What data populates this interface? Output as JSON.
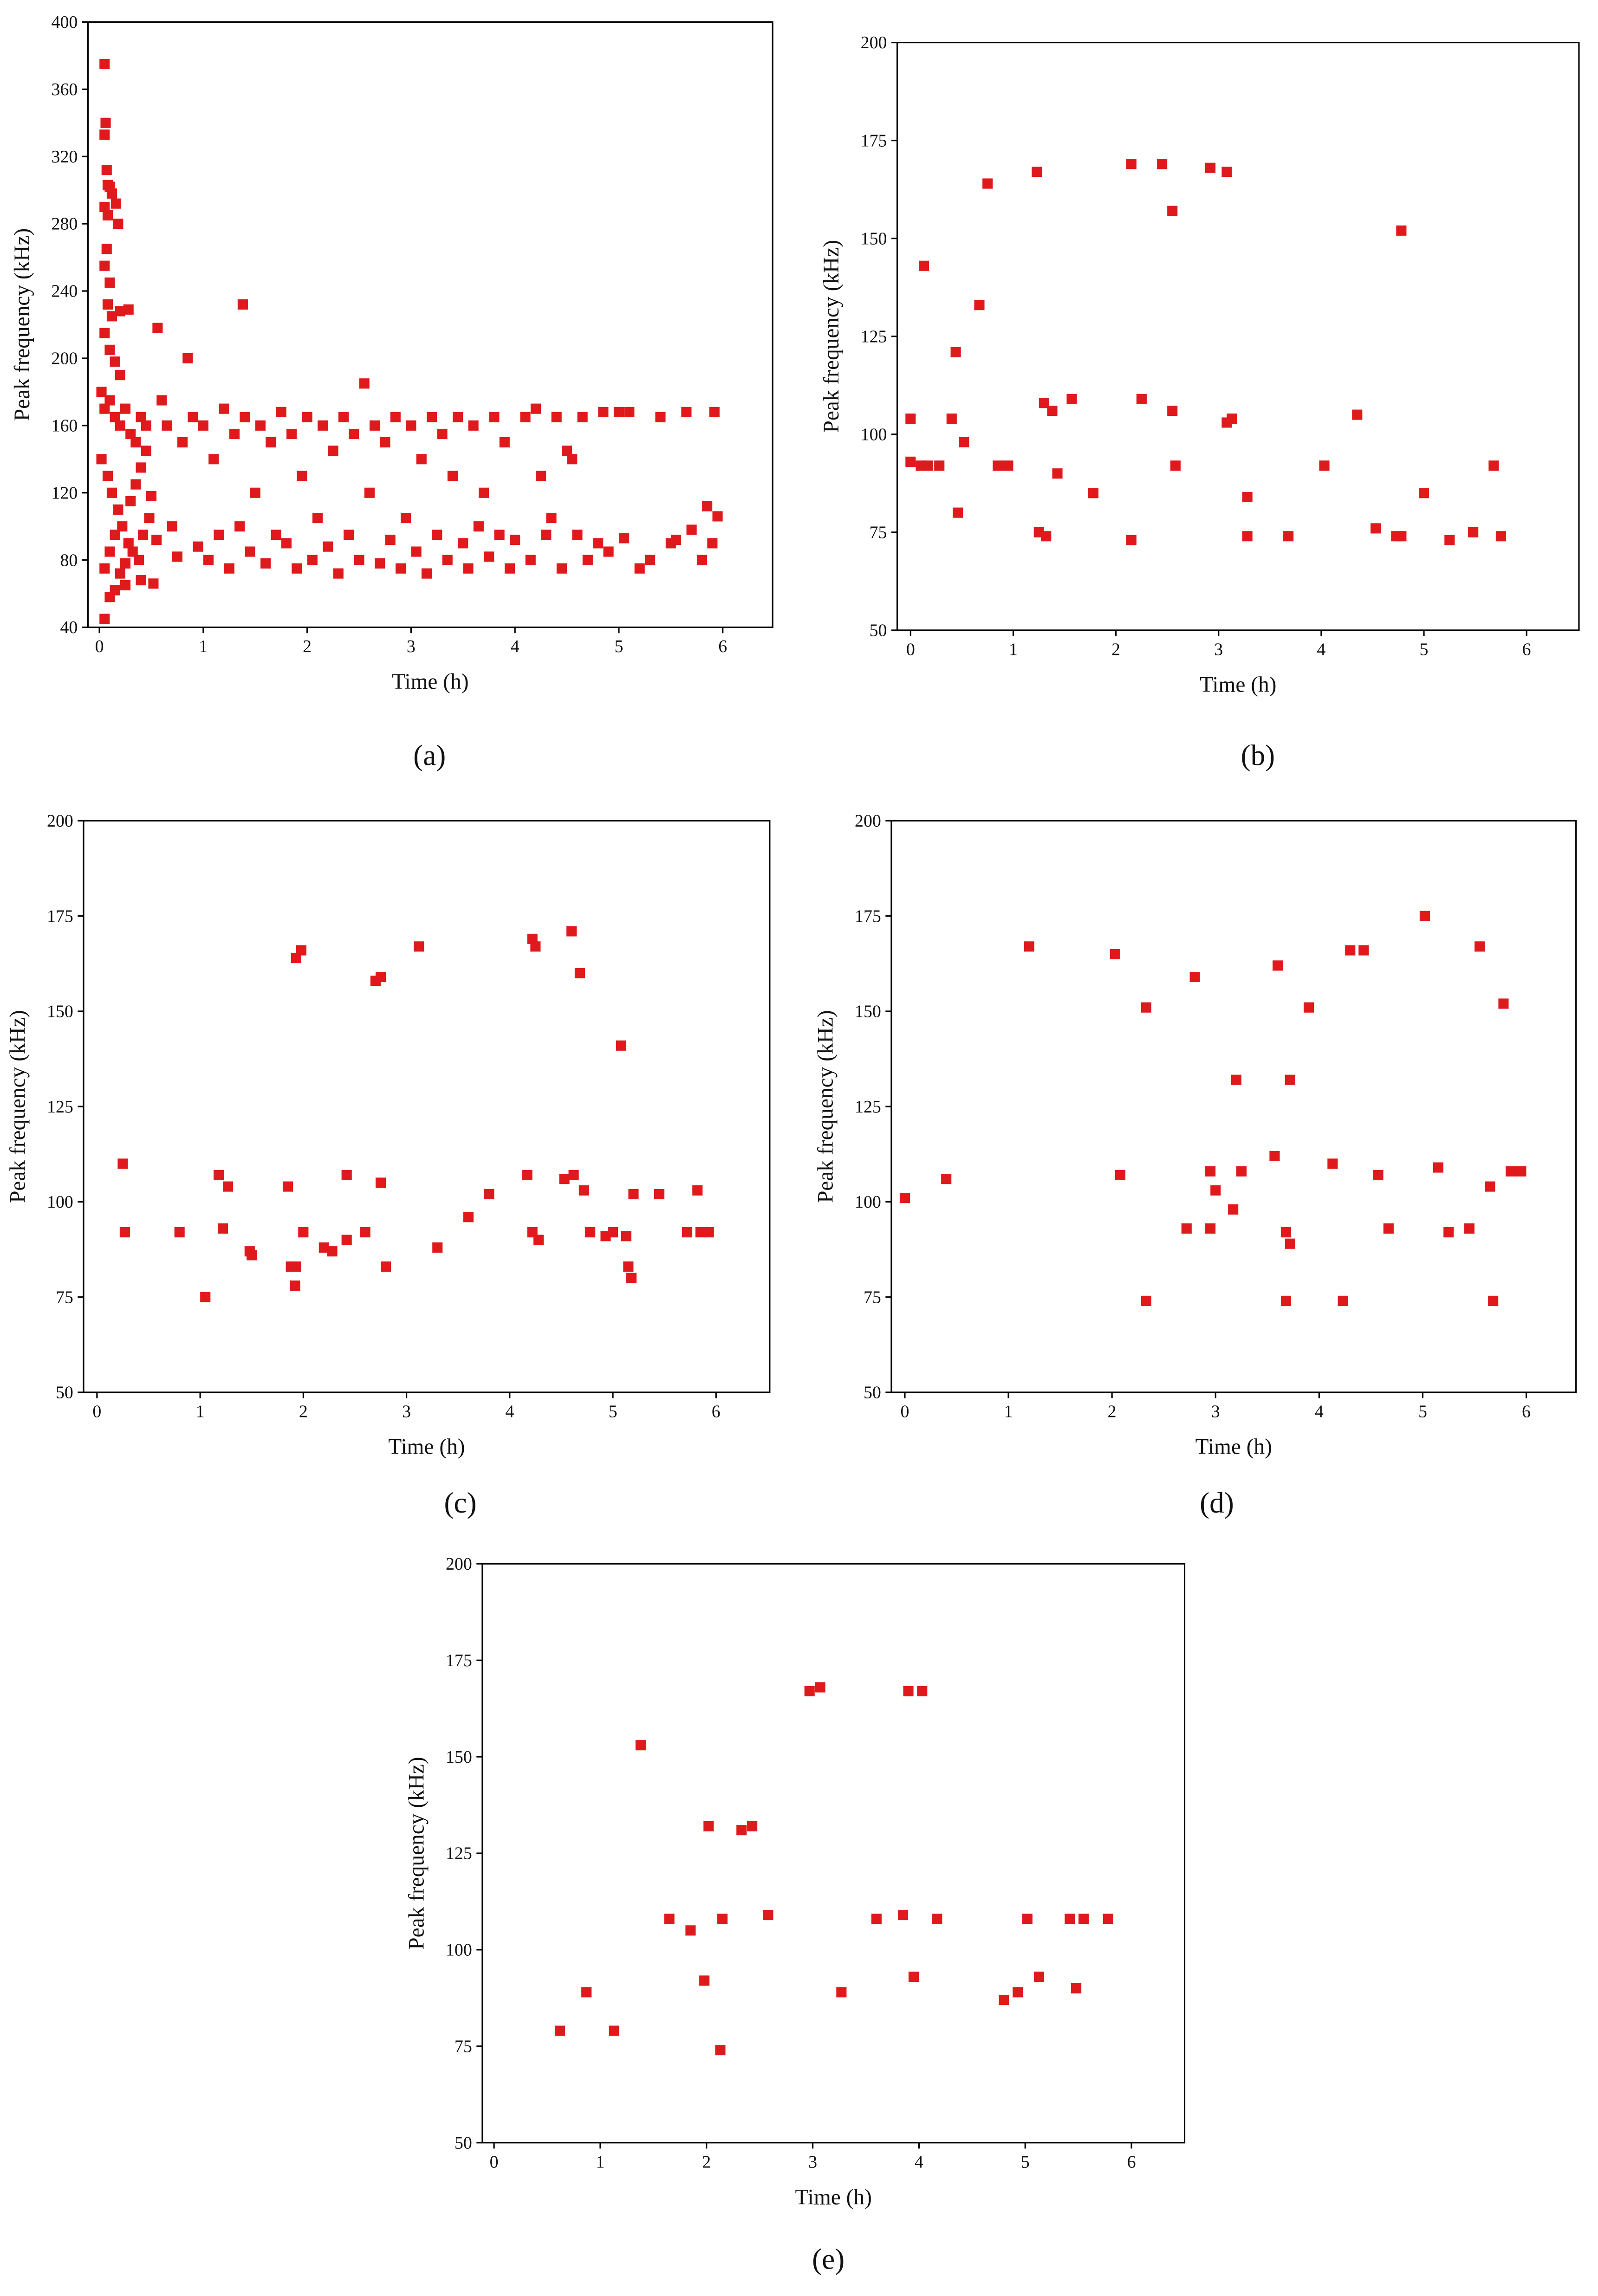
{
  "chart_data": [
    {
      "type": "scatter",
      "caption": "(a)",
      "x_label": "Time (h)",
      "y_label": "Peak frequency (kHz)",
      "color": "#e0191c",
      "xlim": [
        -0.11,
        6.48
      ],
      "ylim": [
        40,
        400
      ],
      "xticks": [
        0,
        1,
        2,
        3,
        4,
        5,
        6
      ],
      "yticks": [
        40,
        80,
        120,
        160,
        200,
        240,
        280,
        320,
        360,
        400
      ],
      "x": [
        0.05,
        0.06,
        0.05,
        0.07,
        0.08,
        0.1,
        0.12,
        0.05,
        0.08,
        0.16,
        0.18,
        0.07,
        0.05,
        0.1,
        0.08,
        0.12,
        0.2,
        0.28,
        0.05,
        0.1,
        0.15,
        0.2,
        0.05,
        0.1,
        0.15,
        0.25,
        0.4,
        0.52,
        0.02,
        0.05,
        0.1,
        0.15,
        0.2,
        0.25,
        0.3,
        0.35,
        0.4,
        0.45,
        0.02,
        0.08,
        0.12,
        0.18,
        0.22,
        0.28,
        0.32,
        0.38,
        0.42,
        0.48,
        0.05,
        0.1,
        0.15,
        0.2,
        0.25,
        0.3,
        0.35,
        0.4,
        0.45,
        0.5,
        0.55,
        0.6,
        0.65,
        0.7,
        0.75,
        0.8,
        0.85,
        0.9,
        0.95,
        0.56,
        1.0,
        1.05,
        1.1,
        1.15,
        1.2,
        1.25,
        1.3,
        1.35,
        1.38,
        1.4,
        1.45,
        1.5,
        1.55,
        1.6,
        1.65,
        1.7,
        1.75,
        1.8,
        1.85,
        1.9,
        1.95,
        2.0,
        2.05,
        2.1,
        2.15,
        2.2,
        2.25,
        2.3,
        2.35,
        2.4,
        2.45,
        2.5,
        2.55,
        2.6,
        2.65,
        2.7,
        2.75,
        2.8,
        2.85,
        2.9,
        2.95,
        3.0,
        3.05,
        3.1,
        3.15,
        3.2,
        3.25,
        3.3,
        3.35,
        3.4,
        3.45,
        3.5,
        3.55,
        3.6,
        3.65,
        3.7,
        3.75,
        3.8,
        3.85,
        3.9,
        3.95,
        4.0,
        4.1,
        4.15,
        4.2,
        4.25,
        4.3,
        4.35,
        4.4,
        4.45,
        4.5,
        4.55,
        4.6,
        4.65,
        4.7,
        4.8,
        4.85,
        4.9,
        5.0,
        5.05,
        5.1,
        5.2,
        5.3,
        5.4,
        5.5,
        5.55,
        5.65,
        5.7,
        5.8,
        5.85,
        5.9,
        5.92,
        5.95
      ],
      "values": [
        375,
        340,
        333,
        312,
        303,
        302,
        298,
        290,
        285,
        292,
        280,
        265,
        255,
        245,
        232,
        225,
        228,
        229,
        215,
        205,
        198,
        190,
        45,
        58,
        62,
        65,
        68,
        66,
        180,
        170,
        175,
        165,
        160,
        170,
        155,
        150,
        165,
        160,
        140,
        130,
        120,
        110,
        100,
        90,
        85,
        80,
        95,
        105,
        75,
        85,
        95,
        72,
        78,
        115,
        125,
        135,
        145,
        118,
        92,
        175,
        160,
        100,
        82,
        150,
        200,
        165,
        88,
        218,
        160,
        80,
        140,
        95,
        170,
        75,
        155,
        100,
        232,
        165,
        85,
        120,
        160,
        78,
        150,
        95,
        168,
        90,
        155,
        75,
        130,
        165,
        80,
        105,
        160,
        88,
        145,
        72,
        165,
        95,
        155,
        80,
        185,
        120,
        160,
        78,
        150,
        92,
        165,
        75,
        105,
        160,
        85,
        140,
        72,
        165,
        95,
        155,
        80,
        130,
        165,
        90,
        75,
        160,
        100,
        120,
        82,
        165,
        95,
        150,
        75,
        92,
        165,
        80,
        170,
        130,
        95,
        105,
        165,
        75,
        145,
        140,
        95,
        165,
        80,
        90,
        168,
        85,
        168,
        93,
        168,
        75,
        80,
        165,
        90,
        92,
        168,
        98,
        80,
        112,
        90,
        168,
        106
      ]
    },
    {
      "type": "scatter",
      "caption": "(b)",
      "x_label": "Time (h)",
      "y_label": "Peak frequency (kHz)",
      "color": "#e0191c",
      "xlim": [
        -0.13,
        6.51
      ],
      "ylim": [
        50,
        200
      ],
      "xticks": [
        0,
        1,
        2,
        3,
        4,
        5,
        6
      ],
      "yticks": [
        50,
        75,
        100,
        125,
        150,
        175,
        200
      ],
      "x": [
        0,
        0,
        0.1,
        0.13,
        0.17,
        0.28,
        0.4,
        0.44,
        0.46,
        0.52,
        0.67,
        0.75,
        0.85,
        0.95,
        1.23,
        1.25,
        1.3,
        1.32,
        1.38,
        1.43,
        1.57,
        1.78,
        2.15,
        2.15,
        2.25,
        2.45,
        2.55,
        2.55,
        2.58,
        2.92,
        3.08,
        3.08,
        3.13,
        3.28,
        3.28,
        3.68,
        4.03,
        4.35,
        4.53,
        4.73,
        4.78,
        4.78,
        5.0,
        5.25,
        5.48,
        5.68,
        5.75
      ],
      "values": [
        104,
        93,
        92,
        143,
        92,
        92,
        104,
        121,
        80,
        98,
        133,
        164,
        92,
        92,
        167,
        75,
        108,
        74,
        106,
        90,
        109,
        85,
        169,
        73,
        109,
        169,
        157,
        106,
        92,
        168,
        167,
        103,
        104,
        84,
        74,
        74,
        92,
        105,
        76,
        74,
        152,
        74,
        85,
        73,
        75,
        92,
        74
      ]
    },
    {
      "type": "scatter",
      "caption": "(c)",
      "x_label": "Time (h)",
      "y_label": "Peak frequency (kHz)",
      "color": "#e0191c",
      "xlim": [
        -0.13,
        6.52
      ],
      "ylim": [
        50,
        200
      ],
      "xticks": [
        0,
        1,
        2,
        3,
        4,
        5,
        6
      ],
      "yticks": [
        50,
        75,
        100,
        125,
        150,
        175,
        200
      ],
      "x": [
        0.25,
        0.27,
        0.8,
        1.05,
        1.18,
        1.22,
        1.27,
        1.48,
        1.5,
        1.85,
        1.88,
        1.93,
        1.92,
        1.93,
        1.98,
        2.0,
        2.2,
        2.28,
        2.42,
        2.42,
        2.6,
        2.7,
        2.75,
        2.75,
        2.8,
        3.12,
        3.3,
        3.6,
        3.8,
        4.17,
        4.22,
        4.25,
        4.22,
        4.28,
        4.53,
        4.6,
        4.62,
        4.68,
        4.72,
        4.78,
        4.93,
        5.0,
        5.08,
        5.13,
        5.15,
        5.18,
        5.2,
        5.45,
        5.72,
        5.82,
        5.85,
        5.93
      ],
      "values": [
        110,
        92,
        92,
        75,
        107,
        93,
        104,
        87,
        86,
        104,
        83,
        83,
        78,
        164,
        166,
        92,
        88,
        87,
        107,
        90,
        92,
        158,
        159,
        105,
        83,
        167,
        88,
        96,
        102,
        107,
        169,
        167,
        92,
        90,
        106,
        171,
        107,
        160,
        103,
        92,
        91,
        92,
        141,
        91,
        83,
        80,
        102,
        102,
        92,
        103,
        92,
        92
      ]
    },
    {
      "type": "scatter",
      "caption": "(d)",
      "x_label": "Time (h)",
      "y_label": "Peak frequency (kHz)",
      "color": "#e0191c",
      "xlim": [
        -0.13,
        6.48
      ],
      "ylim": [
        50,
        200
      ],
      "xticks": [
        0,
        1,
        2,
        3,
        4,
        5,
        6
      ],
      "yticks": [
        50,
        75,
        100,
        125,
        150,
        175,
        200
      ],
      "x": [
        0,
        0.4,
        1.2,
        2.03,
        2.08,
        2.33,
        2.33,
        2.8,
        2.72,
        2.95,
        2.95,
        3.0,
        3.17,
        3.2,
        3.25,
        3.57,
        3.6,
        3.68,
        3.72,
        3.72,
        3.68,
        3.9,
        4.13,
        4.23,
        4.3,
        4.43,
        4.57,
        4.67,
        5.02,
        5.15,
        5.25,
        5.45,
        5.55,
        5.65,
        5.68,
        5.78,
        5.85,
        5.95
      ],
      "values": [
        101,
        106,
        167,
        165,
        107,
        151,
        74,
        159,
        93,
        108,
        93,
        103,
        98,
        132,
        108,
        112,
        162,
        92,
        132,
        89,
        74,
        151,
        110,
        74,
        166,
        166,
        107,
        93,
        175,
        109,
        92,
        93,
        167,
        104,
        74,
        152,
        108,
        108
      ]
    },
    {
      "type": "scatter",
      "caption": "(e)",
      "x_label": "Time (h)",
      "y_label": "Peak frequency (kHz)",
      "color": "#e0191c",
      "xlim": [
        -0.11,
        6.5
      ],
      "ylim": [
        50,
        200
      ],
      "xticks": [
        0,
        1,
        2,
        3,
        4,
        5,
        6
      ],
      "yticks": [
        50,
        75,
        100,
        125,
        150,
        175,
        200
      ],
      "x": [
        0.62,
        0.87,
        1.13,
        1.38,
        1.65,
        1.85,
        1.98,
        2.02,
        2.13,
        2.15,
        2.33,
        2.43,
        2.58,
        2.97,
        3.07,
        3.27,
        3.6,
        3.85,
        3.9,
        3.95,
        4.03,
        4.17,
        4.8,
        4.93,
        5.02,
        5.13,
        5.42,
        5.48,
        5.55,
        5.78
      ],
      "values": [
        79,
        89,
        79,
        153,
        108,
        105,
        92,
        132,
        74,
        108,
        131,
        132,
        109,
        167,
        168,
        89,
        108,
        109,
        167,
        93,
        167,
        108,
        87,
        89,
        108,
        93,
        108,
        90,
        108,
        108
      ]
    }
  ]
}
